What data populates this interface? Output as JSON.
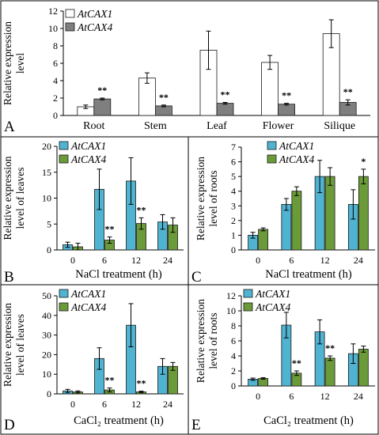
{
  "panels": [
    {
      "letter": "A",
      "chart_data": {
        "type": "bar",
        "categories": [
          "Root",
          "Stem",
          "Leaf",
          "Flower",
          "Silique"
        ],
        "series": [
          {
            "name": "AtCAX1",
            "values": [
              1.0,
              4.3,
              7.5,
              6.1,
              9.4
            ],
            "errors": [
              0.2,
              0.6,
              2.2,
              0.8,
              1.6
            ],
            "color": "#ffffff"
          },
          {
            "name": "AtCAX4",
            "values": [
              1.9,
              1.1,
              1.4,
              1.3,
              1.5
            ],
            "errors": [
              0.1,
              0.1,
              0.1,
              0.1,
              0.3
            ],
            "color": "#7f7f7f"
          }
        ],
        "marks": [
          [
            null,
            "**"
          ],
          [
            null,
            "**"
          ],
          [
            null,
            "**"
          ],
          [
            null,
            "**"
          ],
          [
            null,
            "**"
          ]
        ],
        "ylabel": [
          "Relative expression",
          "level"
        ],
        "xlabel": "",
        "ylim": [
          0,
          12
        ],
        "yticks": [
          "0",
          "2",
          "4",
          "6",
          "8",
          "10",
          "12"
        ],
        "legend": "top-left",
        "grid": false
      }
    },
    {
      "letter": "B",
      "chart_data": {
        "type": "bar",
        "categories": [
          "0",
          "6",
          "12",
          "24"
        ],
        "series": [
          {
            "name": "AtCAX1",
            "values": [
              1.0,
              11.7,
              13.3,
              5.4
            ],
            "errors": [
              0.5,
              3.9,
              4.5,
              1.4
            ],
            "color": "#4fb3d1"
          },
          {
            "name": "AtCAX4",
            "values": [
              0.6,
              1.9,
              5.1,
              4.8
            ],
            "errors": [
              0.7,
              0.6,
              1.1,
              1.4
            ],
            "color": "#6b9a38"
          }
        ],
        "marks": [
          [
            null,
            null
          ],
          [
            null,
            "**"
          ],
          [
            null,
            "**"
          ],
          [
            null,
            null
          ]
        ],
        "ylabel": [
          "Relative expression",
          "level of leaves"
        ],
        "xlabel": "NaCl treatment (h)",
        "ylim": [
          0,
          20
        ],
        "yticks": [
          "0",
          "5",
          "10",
          "15",
          "20"
        ],
        "legend": "top-left",
        "grid": false
      }
    },
    {
      "letter": "C",
      "chart_data": {
        "type": "bar",
        "categories": [
          "0",
          "6",
          "12",
          "24"
        ],
        "series": [
          {
            "name": "AtCAX1",
            "values": [
              1.0,
              3.1,
              5.0,
              3.1
            ],
            "errors": [
              0.2,
              0.4,
              1.1,
              1.0
            ],
            "color": "#4fb3d1"
          },
          {
            "name": "AtCAX4",
            "values": [
              1.4,
              4.0,
              5.0,
              5.0
            ],
            "errors": [
              0.1,
              0.3,
              0.6,
              0.5
            ],
            "color": "#6b9a38"
          }
        ],
        "marks": [
          [
            null,
            null
          ],
          [
            null,
            null
          ],
          [
            null,
            null
          ],
          [
            null,
            "*"
          ]
        ],
        "ylabel": [
          "Relative expression",
          "level of roots"
        ],
        "xlabel": "NaCl treatment (h)",
        "ylim": [
          0,
          7
        ],
        "yticks": [
          "0",
          "1",
          "2",
          "3",
          "4",
          "5",
          "6",
          "7"
        ],
        "legend": "top-right",
        "grid": false
      }
    },
    {
      "letter": "D",
      "chart_data": {
        "type": "bar",
        "categories": [
          "0",
          "6",
          "12",
          "24"
        ],
        "series": [
          {
            "name": "AtCAX1",
            "values": [
              1.5,
              18.0,
              35.0,
              14.0
            ],
            "errors": [
              0.8,
              5.5,
              11.0,
              4.0
            ],
            "color": "#4fb3d1"
          },
          {
            "name": "AtCAX4",
            "values": [
              1.0,
              2.0,
              1.0,
              14.0
            ],
            "errors": [
              0.5,
              1.0,
              0.4,
              2.0
            ],
            "color": "#6b9a38"
          }
        ],
        "marks": [
          [
            null,
            null
          ],
          [
            null,
            "**"
          ],
          [
            null,
            "**"
          ],
          [
            null,
            null
          ]
        ],
        "ylabel": [
          "Relative expression",
          "level of leaves"
        ],
        "xlabel": "CaCl₂ treatment (h)",
        "ylim": [
          0,
          50
        ],
        "yticks": [
          "0",
          "10",
          "20",
          "30",
          "40",
          "50"
        ],
        "legend": "top-left",
        "grid": false
      }
    },
    {
      "letter": "E",
      "chart_data": {
        "type": "bar",
        "categories": [
          "0",
          "6",
          "12",
          "24"
        ],
        "series": [
          {
            "name": "AtCAX1",
            "values": [
              0.9,
              8.1,
              7.2,
              4.3
            ],
            "errors": [
              0.15,
              1.7,
              1.6,
              1.3
            ],
            "color": "#4fb3d1"
          },
          {
            "name": "AtCAX4",
            "values": [
              1.0,
              1.7,
              3.7,
              4.9
            ],
            "errors": [
              0.1,
              0.3,
              0.3,
              0.4
            ],
            "color": "#6b9a38"
          }
        ],
        "marks": [
          [
            null,
            null
          ],
          [
            null,
            "**"
          ],
          [
            null,
            "**"
          ],
          [
            null,
            null
          ]
        ],
        "ylabel": [
          "Relative expression",
          "level of roots"
        ],
        "xlabel": "CaCl₂ treatment (h)",
        "ylim": [
          0,
          12
        ],
        "yticks": [
          "0",
          "2",
          "4",
          "6",
          "8",
          "10",
          "12"
        ],
        "legend": "top-left",
        "grid": false
      }
    }
  ]
}
